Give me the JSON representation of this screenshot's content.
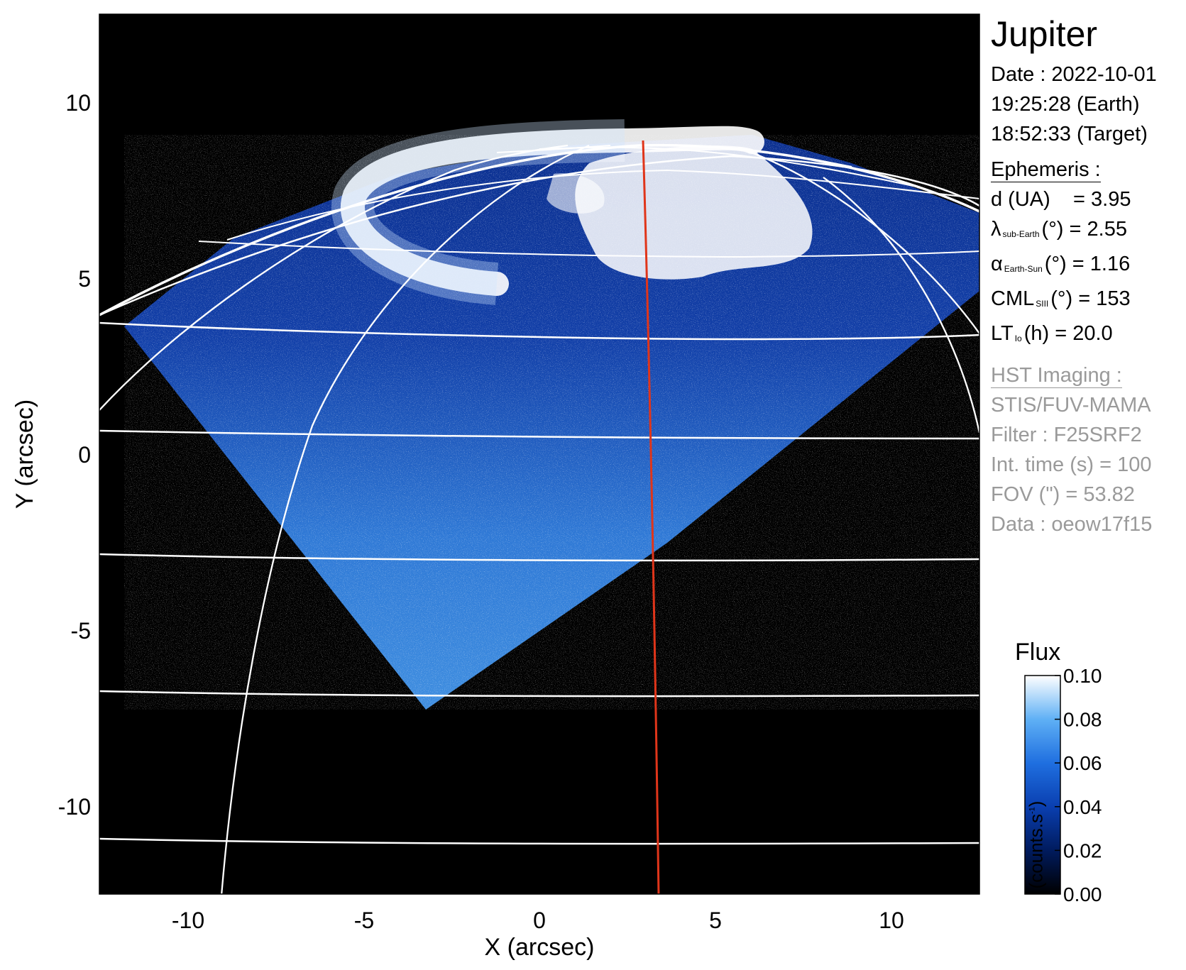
{
  "title": "Jupiter",
  "observation": {
    "date": "Date : 2022-10-01",
    "time_earth": "19:25:28 (Earth)",
    "time_target": "18:52:33 (Target)"
  },
  "ephemeris": {
    "heading": "Ephemeris :",
    "distance": {
      "label": "d (UA)",
      "value": "= 3.95"
    },
    "sub_earth_lat": {
      "symbol": "λ",
      "subscript": "sub-Earth",
      "unit": "(°)",
      "value": "= 2.55"
    },
    "phase_angle": {
      "symbol": "α",
      "subscript": "Earth-Sun",
      "unit": "(°)",
      "value": "= 1.16"
    },
    "cml": {
      "symbol": "CML",
      "subscript": "SIII",
      "unit": "(°)",
      "value": "= 153"
    },
    "local_time": {
      "symbol": "LT",
      "subscript": "Io",
      "unit": "(h)",
      "value": "= 20.0"
    }
  },
  "hst": {
    "heading": "HST Imaging :",
    "instrument": "STIS/FUV-MAMA",
    "filter": "Filter : F25SRF2",
    "integration": "Int. time (s) = 100",
    "fov": "FOV (\") = 53.82",
    "dataset": "Data : oeow17f15"
  },
  "axes": {
    "x_label": "X (arcsec)",
    "y_label": "Y (arcsec)",
    "x_ticks": [
      "-10",
      "-5",
      "0",
      "5",
      "10"
    ],
    "y_ticks": [
      "10",
      "5",
      "0",
      "-5",
      "-10"
    ],
    "x_tick_values": [
      -10,
      -5,
      0,
      5,
      10
    ],
    "y_tick_values": [
      10,
      5,
      0,
      -5,
      -10
    ],
    "xlim": [
      -12.5,
      12.5
    ],
    "ylim": [
      -12.5,
      12.5
    ]
  },
  "colorbar": {
    "title": "Flux",
    "unit_text": "(counts.s",
    "unit_sup": "-1",
    "unit_close": ")",
    "ticks": [
      "0.10",
      "0.08",
      "0.06",
      "0.04",
      "0.02",
      "0.00"
    ],
    "tick_values": [
      0.1,
      0.08,
      0.06,
      0.04,
      0.02,
      0.0
    ],
    "range": [
      0.0,
      0.1
    ],
    "colors": [
      "#000000",
      "#001b5e",
      "#0a3fb0",
      "#1f6fe0",
      "#5fb0f5",
      "#ffffff"
    ]
  },
  "colors": {
    "background": "#000000",
    "grid": "#ffffff",
    "meridian": "#e0351a",
    "hst_text": "#9a9a9a"
  }
}
